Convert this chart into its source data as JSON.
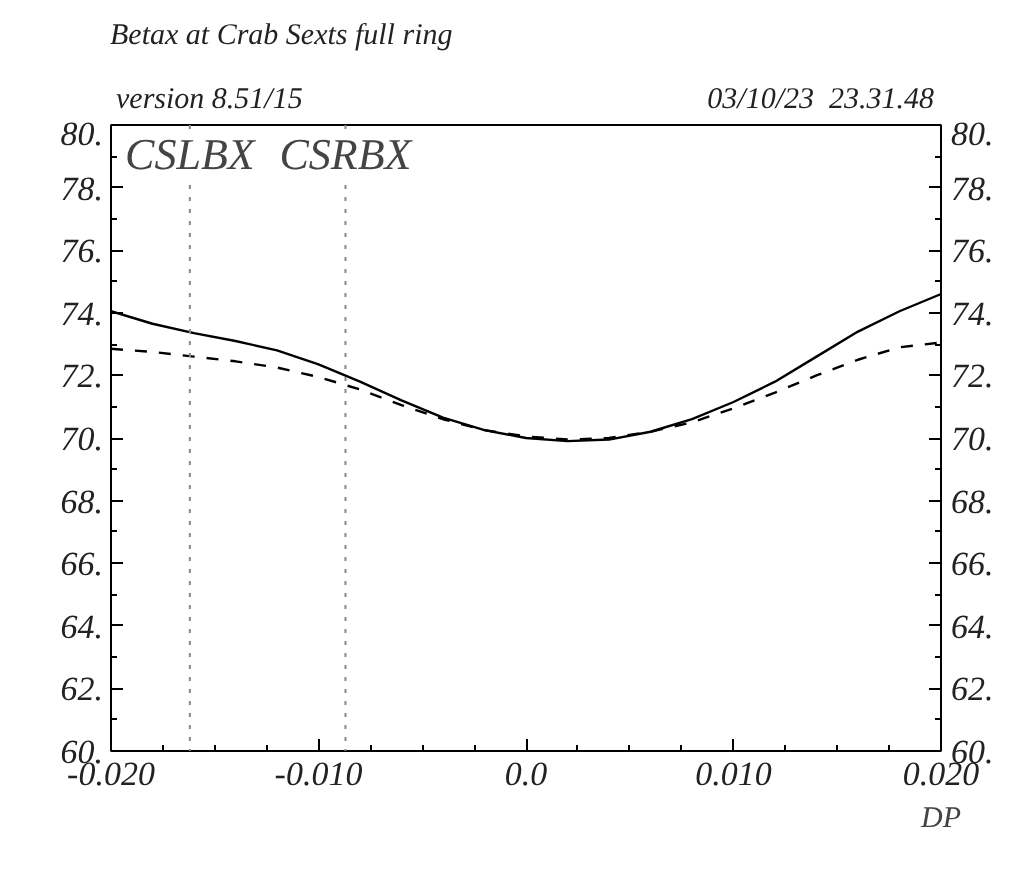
{
  "chart_data": {
    "type": "line",
    "title": "Betax at Crab Sexts full ring",
    "xlabel": "DP",
    "annotations": [
      "version 8.51/15",
      "03/10/23  23.31.48"
    ],
    "x": [
      -0.02,
      -0.018,
      -0.016,
      -0.014,
      -0.012,
      -0.01,
      -0.008,
      -0.006,
      -0.004,
      -0.002,
      0.0,
      0.002,
      0.004,
      0.006,
      0.008,
      0.01,
      0.012,
      0.014,
      0.016,
      0.018,
      0.02
    ],
    "series": [
      {
        "color": "#000000",
        "line_style": "solid",
        "values": [
          74.05,
          73.65,
          73.35,
          73.1,
          72.8,
          72.35,
          71.8,
          71.2,
          70.65,
          70.25,
          70.0,
          69.9,
          69.95,
          70.2,
          70.6,
          71.15,
          71.8,
          72.6,
          73.4,
          74.05,
          74.6
        ]
      },
      {
        "color": "#000000",
        "line_style": "dashed",
        "values": [
          72.85,
          72.75,
          72.6,
          72.45,
          72.25,
          71.95,
          71.55,
          71.05,
          70.6,
          70.25,
          70.05,
          69.95,
          70.0,
          70.2,
          70.5,
          70.95,
          71.45,
          72.0,
          72.5,
          72.9,
          73.05
        ]
      }
    ],
    "xlim": [
      -0.02,
      0.02
    ],
    "xticks": [
      {
        "value": -0.02,
        "label": "-0.020"
      },
      {
        "value": -0.0175,
        "label": null
      },
      {
        "value": -0.015,
        "label": null
      },
      {
        "value": -0.0125,
        "label": null
      },
      {
        "value": -0.01,
        "label": "-0.010"
      },
      {
        "value": -0.0075,
        "label": null
      },
      {
        "value": -0.005,
        "label": null
      },
      {
        "value": -0.0025,
        "label": null
      },
      {
        "value": 0.0,
        "label": "0.0"
      },
      {
        "value": 0.0025,
        "label": null
      },
      {
        "value": 0.005,
        "label": null
      },
      {
        "value": 0.0075,
        "label": null
      },
      {
        "value": 0.01,
        "label": "0.010"
      },
      {
        "value": 0.0125,
        "label": null
      },
      {
        "value": 0.015,
        "label": null
      },
      {
        "value": 0.0175,
        "label": null
      },
      {
        "value": 0.02,
        "label": "0.020"
      }
    ],
    "ylim": [
      60,
      80
    ],
    "yticks": [
      {
        "value": 60,
        "label": "60."
      },
      {
        "value": 61,
        "label": null
      },
      {
        "value": 62,
        "label": "62."
      },
      {
        "value": 63,
        "label": null
      },
      {
        "value": 64,
        "label": "64."
      },
      {
        "value": 65,
        "label": null
      },
      {
        "value": 66,
        "label": "66."
      },
      {
        "value": 67,
        "label": null
      },
      {
        "value": 68,
        "label": "68."
      },
      {
        "value": 69,
        "label": null
      },
      {
        "value": 70,
        "label": "70."
      },
      {
        "value": 71,
        "label": null
      },
      {
        "value": 72,
        "label": "72."
      },
      {
        "value": 73,
        "label": null
      },
      {
        "value": 74,
        "label": "74."
      },
      {
        "value": 75,
        "label": null
      },
      {
        "value": 76,
        "label": "76."
      },
      {
        "value": 77,
        "label": null
      },
      {
        "value": 78,
        "label": "78."
      },
      {
        "value": 79,
        "label": null
      },
      {
        "value": 80,
        "label": "80."
      }
    ],
    "y2lim": [
      60,
      80
    ],
    "y2ticks": [
      {
        "value": 60,
        "label": "60."
      },
      {
        "value": 61,
        "label": null
      },
      {
        "value": 62,
        "label": "62."
      },
      {
        "value": 63,
        "label": null
      },
      {
        "value": 64,
        "label": "64."
      },
      {
        "value": 65,
        "label": null
      },
      {
        "value": 66,
        "label": "66."
      },
      {
        "value": 67,
        "label": null
      },
      {
        "value": 68,
        "label": "68."
      },
      {
        "value": 69,
        "label": null
      },
      {
        "value": 70,
        "label": "70."
      },
      {
        "value": 71,
        "label": null
      },
      {
        "value": 72,
        "label": "72."
      },
      {
        "value": 73,
        "label": null
      },
      {
        "value": 74,
        "label": "74."
      },
      {
        "value": 75,
        "label": null
      },
      {
        "value": 76,
        "label": "76."
      },
      {
        "value": 77,
        "label": null
      },
      {
        "value": 78,
        "label": "78."
      },
      {
        "value": 79,
        "label": null
      },
      {
        "value": 80,
        "label": "80."
      }
    ],
    "ref_lines": [
      {
        "axis": "x",
        "value": -0.0162,
        "label": "CSLBX",
        "color": "#888888",
        "line_style": "dotted"
      },
      {
        "axis": "x",
        "value": -0.0087,
        "label": "CSRBX",
        "color": "#888888",
        "line_style": "dotted"
      }
    ],
    "grid": false,
    "marker": "none"
  }
}
